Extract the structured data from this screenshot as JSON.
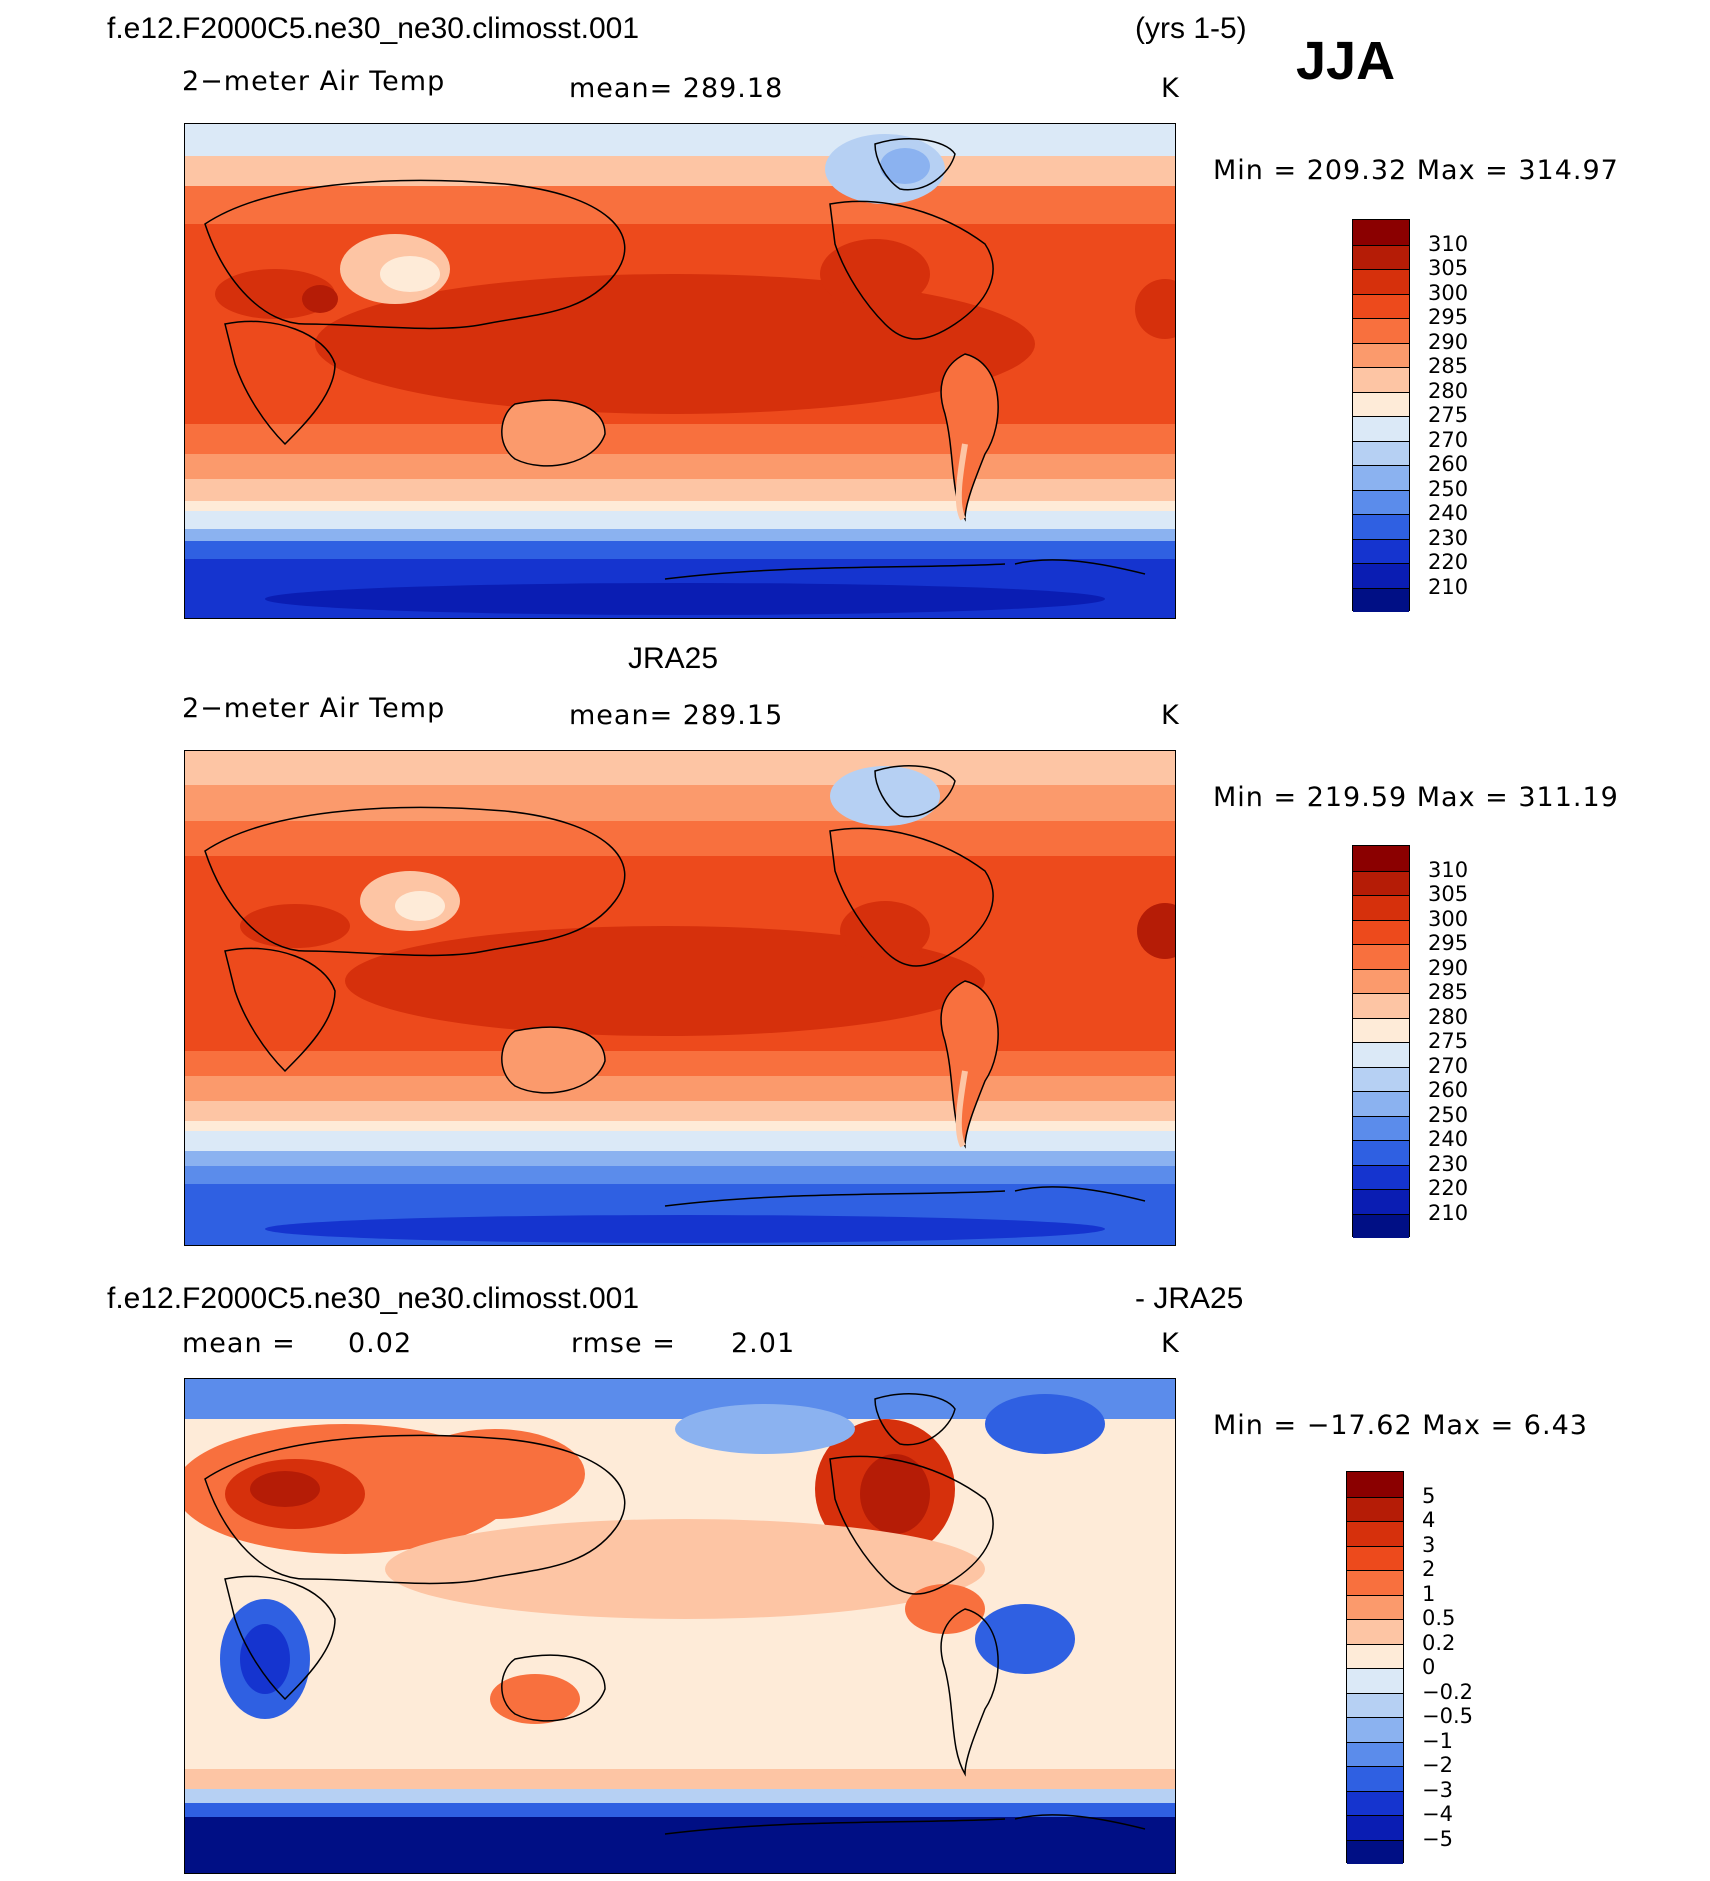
{
  "season": "JJA",
  "panel1": {
    "title": "f.e12.F2000C5.ne30_ne30.climosst.001",
    "years": "(yrs 1-5)",
    "variable": "2−meter Air Temp",
    "mean_text": "mean=  289.18",
    "units": "K",
    "minmax_text": "Min  =  209.32  Max  =  314.97",
    "colorbar": {
      "labels": [
        "310",
        "305",
        "300",
        "295",
        "290",
        "285",
        "280",
        "275",
        "270",
        "260",
        "250",
        "240",
        "230",
        "220",
        "210"
      ],
      "colors": [
        "#8b0000",
        "#b51c06",
        "#d6300c",
        "#ed4a1c",
        "#f8703e",
        "#fb9a6c",
        "#fdc5a4",
        "#feebd8",
        "#dbe9f7",
        "#b6d0f3",
        "#8bb2f0",
        "#5b8ceb",
        "#2f60e2",
        "#1534cf",
        "#0a1db3",
        "#000f85"
      ]
    },
    "map_image": "global equirectangular map of 2-meter air temperature, warm oranges in tropics, blue over Antarctica"
  },
  "panel2": {
    "title": "JRA25",
    "variable": "2−meter Air Temp",
    "mean_text": "mean=  289.15",
    "units": "K",
    "minmax_text": "Min  =  219.59  Max  =  311.19",
    "colorbar": {
      "labels": [
        "310",
        "305",
        "300",
        "295",
        "290",
        "285",
        "280",
        "275",
        "270",
        "260",
        "250",
        "240",
        "230",
        "220",
        "210"
      ],
      "colors": [
        "#8b0000",
        "#b51c06",
        "#d6300c",
        "#ed4a1c",
        "#f8703e",
        "#fb9a6c",
        "#fdc5a4",
        "#feebd8",
        "#dbe9f7",
        "#b6d0f3",
        "#8bb2f0",
        "#5b8ceb",
        "#2f60e2",
        "#1534cf",
        "#0a1db3",
        "#000f85"
      ]
    },
    "map_image": "global equirectangular map of reanalysis 2-meter air temperature"
  },
  "panel3": {
    "title": "f.e12.F2000C5.ne30_ne30.climosst.001",
    "title_right": "- JRA25",
    "mean_label": "mean  =",
    "mean_value": "0.02",
    "rmse_label": "rmse  =",
    "rmse_value": "2.01",
    "units": "K",
    "minmax_text": "Min  =  −17.62  Max  =      6.43",
    "colorbar": {
      "labels": [
        "5",
        "4",
        "3",
        "2",
        "1",
        "0.5",
        "0.2",
        "0",
        "−0.2",
        "−0.5",
        "−1",
        "−2",
        "−3",
        "−4",
        "−5"
      ],
      "colors": [
        "#8b0000",
        "#b51c06",
        "#d6300c",
        "#ed4a1c",
        "#f8703e",
        "#fb9a6c",
        "#fdc5a4",
        "#feebd8",
        "#dbe9f7",
        "#b6d0f3",
        "#8bb2f0",
        "#5b8ceb",
        "#2f60e2",
        "#1534cf",
        "#0a1db3",
        "#000f85"
      ]
    },
    "map_image": "global difference map, model minus reanalysis, mostly light reds and blues"
  }
}
